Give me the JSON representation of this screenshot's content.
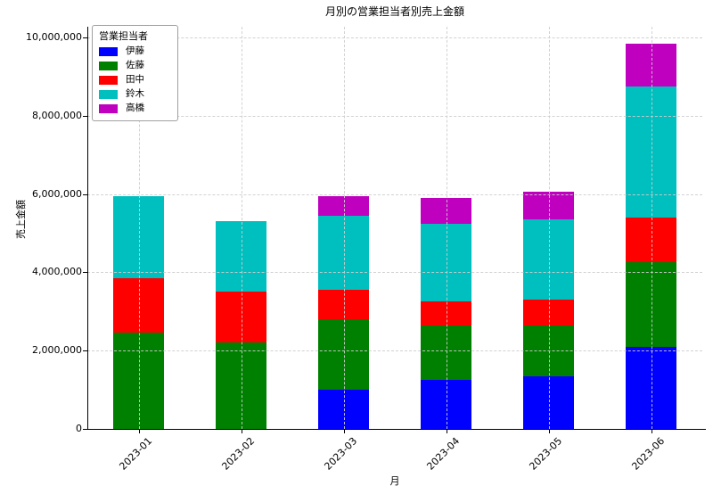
{
  "chart_data": {
    "type": "bar",
    "stacked": true,
    "title": "月別の営業担当者別売上金額",
    "xlabel": "月",
    "ylabel": "売上金額",
    "legend_title": "営業担当者",
    "legend_position": "upper left",
    "grid": true,
    "categories": [
      "2023-01",
      "2023-02",
      "2023-03",
      "2023-04",
      "2023-05",
      "2023-06"
    ],
    "series": [
      {
        "name": "伊藤",
        "color": "#0000ff",
        "values": [
          0,
          0,
          1000000,
          1250000,
          1350000,
          2100000
        ]
      },
      {
        "name": "佐藤",
        "color": "#008000",
        "values": [
          2450000,
          2200000,
          1800000,
          1400000,
          1300000,
          2150000
        ]
      },
      {
        "name": "田中",
        "color": "#ff0000",
        "values": [
          1400000,
          1300000,
          750000,
          600000,
          650000,
          1150000
        ]
      },
      {
        "name": "鈴木",
        "color": "#00bfbf",
        "values": [
          2100000,
          1800000,
          1900000,
          2000000,
          2050000,
          3350000
        ]
      },
      {
        "name": "高橋",
        "color": "#bf00bf",
        "values": [
          0,
          0,
          500000,
          650000,
          700000,
          1100000
        ]
      }
    ],
    "ylim": [
      0,
      10000000
    ],
    "yticks": [
      0,
      2000000,
      4000000,
      6000000,
      8000000,
      10000000
    ],
    "ytick_labels": [
      "0",
      "2,000,000",
      "4,000,000",
      "6,000,000",
      "8,000,000",
      "10,000,000"
    ]
  }
}
